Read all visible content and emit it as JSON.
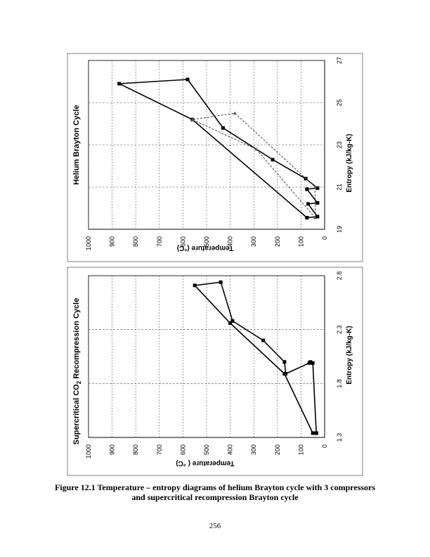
{
  "caption": {
    "line1": "Figure 12.1 Temperature – entropy diagrams of helium Brayton cycle with 3 compressors",
    "line2": "and supercritical recompression Brayton cycle"
  },
  "page_number": "256",
  "chart_data": [
    {
      "id": "co2",
      "type": "line",
      "title_main": "Supercritical CO",
      "title_sub": "2",
      "title_rest": " Recompression Cycle",
      "xlabel": "Entropy (kJ/kg-K)",
      "ylabel": "Temperature ( °C)",
      "xlim": [
        1.3,
        2.8
      ],
      "ylim": [
        0,
        1000
      ],
      "xticks": [
        1.3,
        1.8,
        2.3,
        2.8
      ],
      "yticks": [
        0,
        100,
        200,
        300,
        400,
        500,
        600,
        700,
        800,
        900,
        1000
      ],
      "grid": true,
      "series": [
        {
          "name": "cycle",
          "style": "solid",
          "marker": "square",
          "points": [
            [
              1.34,
              35
            ],
            [
              1.99,
              50
            ],
            [
              2.0,
              60
            ],
            [
              1.99,
              65
            ],
            [
              1.89,
              165
            ],
            [
              2.0,
              170
            ],
            [
              2.2,
              260
            ],
            [
              2.38,
              390
            ],
            [
              2.74,
              440
            ],
            [
              2.71,
              550
            ],
            [
              2.36,
              400
            ],
            [
              1.89,
              170
            ],
            [
              1.34,
              50
            ],
            [
              1.34,
              35
            ]
          ]
        }
      ]
    },
    {
      "id": "helium",
      "type": "line",
      "title_main": "Helium Brayton Cycle",
      "xlabel": "Entropy (kJ/kg-K)",
      "ylabel": "Temperature (°C)",
      "xlim": [
        19,
        27
      ],
      "ylim": [
        0,
        1000
      ],
      "xticks": [
        19,
        21,
        23,
        25,
        27
      ],
      "yticks": [
        0,
        100,
        200,
        300,
        400,
        500,
        600,
        700,
        800,
        900,
        1000
      ],
      "grid": true,
      "series": [
        {
          "name": "cycle",
          "style": "solid",
          "marker": "square",
          "points": [
            [
              19.55,
              75
            ],
            [
              19.6,
              30
            ],
            [
              20.2,
              70
            ],
            [
              20.25,
              30
            ],
            [
              20.9,
              75
            ],
            [
              20.95,
              30
            ],
            [
              21.4,
              80
            ],
            [
              22.3,
              220
            ],
            [
              23.8,
              430
            ],
            [
              26.1,
              580
            ],
            [
              25.9,
              870
            ],
            [
              24.2,
              560
            ],
            [
              19.55,
              75
            ]
          ]
        },
        {
          "name": "dashed",
          "style": "dashed",
          "marker": "triangle",
          "points": [
            [
              19.55,
              40
            ],
            [
              22.8,
              290
            ],
            [
              24.2,
              560
            ],
            [
              24.5,
              380
            ],
            [
              21.0,
              40
            ],
            [
              19.55,
              40
            ]
          ]
        }
      ]
    }
  ]
}
